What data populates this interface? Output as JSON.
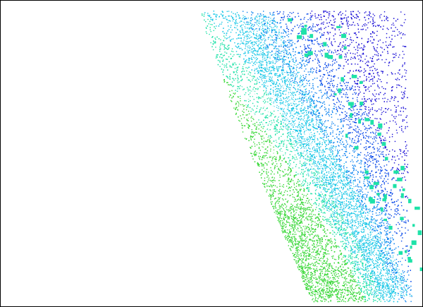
{
  "view": {
    "background": "#ffffff",
    "border_color": "#000000"
  },
  "point_cloud": {
    "colormap": [
      "#1a0fd6",
      "#0646e8",
      "#0a82f0",
      "#14c6e6",
      "#1fe2a8",
      "#39d838"
    ],
    "color_by": "elevation"
  }
}
